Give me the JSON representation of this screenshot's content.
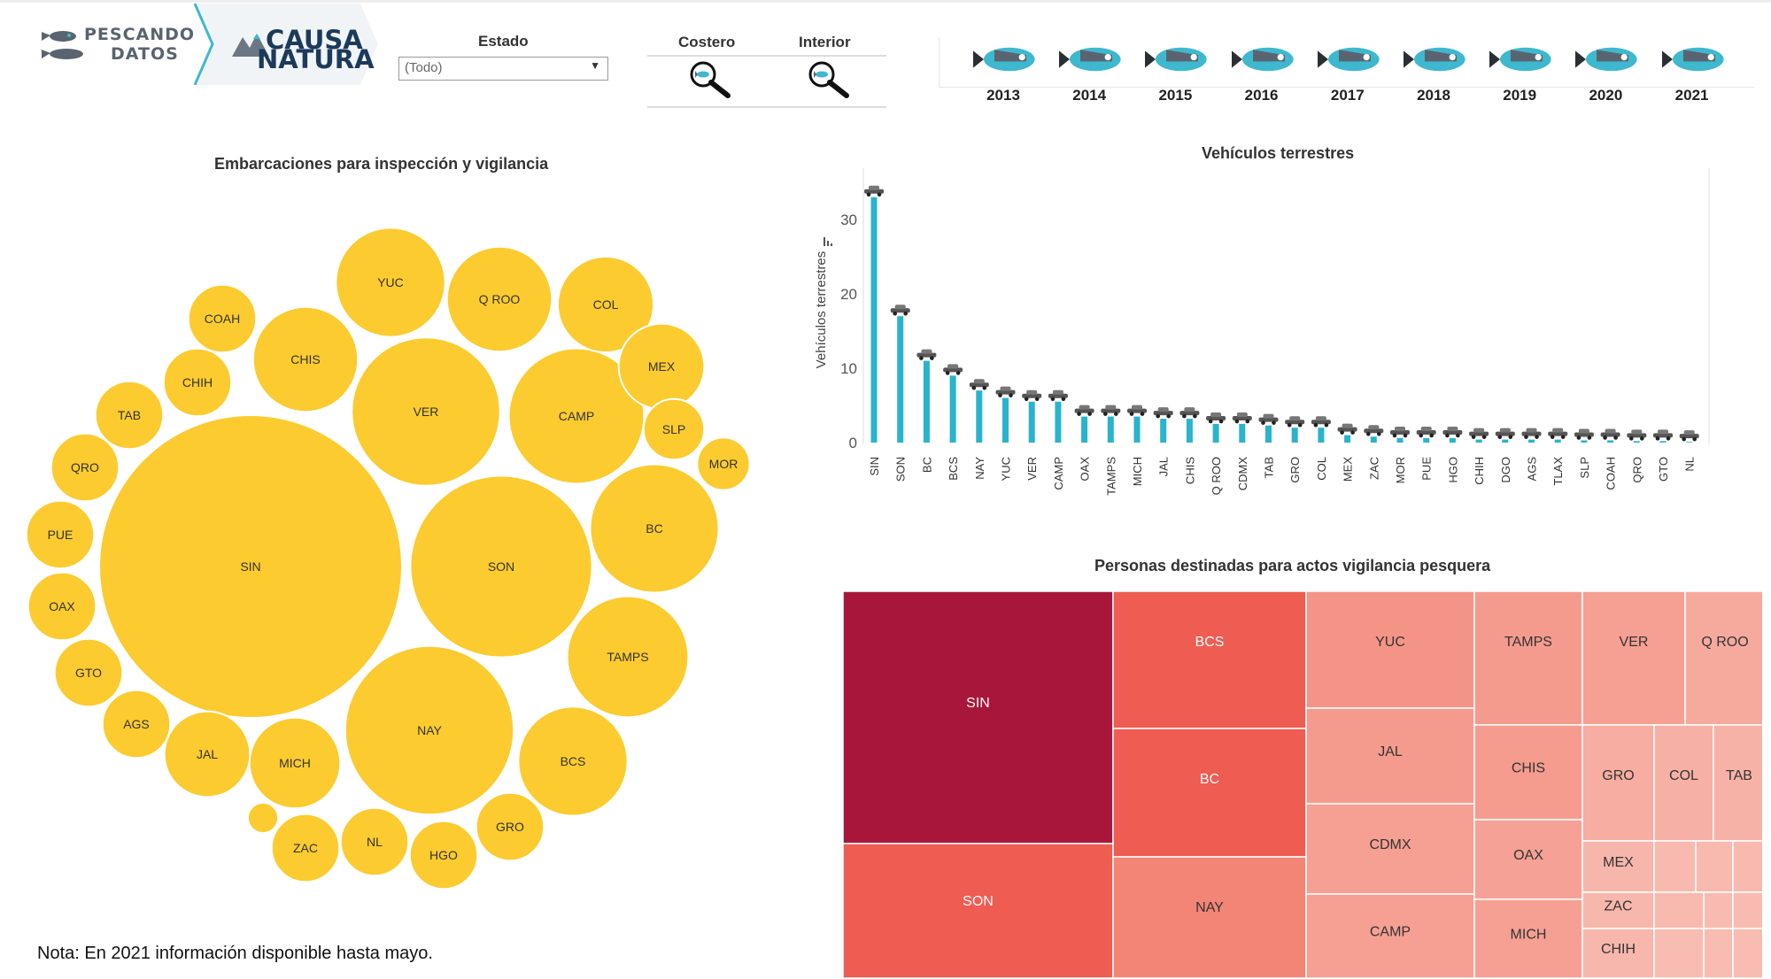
{
  "header": {
    "logo1": {
      "word1": "PESCANDO",
      "word2": "DATOS"
    },
    "logo2": {
      "word1": "CAUSA",
      "word2": "NATURA"
    },
    "estado": {
      "label": "Estado",
      "value": "(Todo)"
    },
    "toggles": [
      {
        "label": "Costero"
      },
      {
        "label": "Interior"
      }
    ],
    "years": [
      "2013",
      "2014",
      "2015",
      "2016",
      "2017",
      "2018",
      "2019",
      "2020",
      "2021"
    ]
  },
  "colors": {
    "bubble": "#FCCB2F",
    "bar": "#28B4CC",
    "fish": "#3EB8CF",
    "treemap_dark": "#A8173B",
    "treemap_mid": "#EE5C52",
    "treemap_light": "#F7AFA2"
  },
  "note": "Nota: En 2021 información disponible hasta mayo.",
  "chart_data": [
    {
      "type": "bubble",
      "title": "Embarcaciones para inspección y vigilancia",
      "labels": [
        "SIN",
        "SON",
        "NAY",
        "VER",
        "CAMP",
        "BC",
        "TAMPS",
        "BCS",
        "YUC",
        "Q ROO",
        "CHIS",
        "COL",
        "MICH",
        "MEX",
        "JAL",
        "COAH",
        "GRO",
        "CHIH",
        "HGO",
        "ZAC",
        "AGS",
        "NL",
        "TAB",
        "QRO",
        "PUE",
        "OAX",
        "GTO",
        "SLP",
        "MOR",
        ""
      ],
      "values": [
        100,
        36,
        31,
        24,
        20,
        18,
        16,
        13,
        13,
        12,
        12,
        10,
        9,
        8,
        8,
        5,
        5,
        5,
        5,
        5,
        5,
        5,
        5,
        5,
        5,
        5,
        5,
        4,
        3,
        1
      ]
    },
    {
      "type": "bar",
      "title": "Vehículos terrestres",
      "ylabel": "Vehículos terrestres",
      "ylim": [
        0,
        35
      ],
      "yticks": [
        0,
        10,
        20,
        30
      ],
      "categories": [
        "SIN",
        "SON",
        "BC",
        "BCS",
        "NAY",
        "YUC",
        "VER",
        "CAMP",
        "OAX",
        "TAMPS",
        "MICH",
        "JAL",
        "CHIS",
        "Q ROO",
        "CDMX",
        "TAB",
        "GRO",
        "COL",
        "MEX",
        "ZAC",
        "MOR",
        "PUE",
        "HGO",
        "CHIH",
        "DGO",
        "AGS",
        "TLAX",
        "SLP",
        "COAH",
        "QRO",
        "GTO",
        "NL"
      ],
      "values": [
        33,
        17,
        11,
        9,
        7,
        6,
        5.5,
        5.5,
        3.5,
        3.5,
        3.5,
        3.2,
        3.2,
        2.5,
        2.5,
        2.3,
        2,
        2,
        1,
        0.8,
        0.6,
        0.6,
        0.6,
        0.4,
        0.4,
        0.4,
        0.4,
        0.3,
        0.3,
        0.2,
        0.2,
        0.1
      ]
    },
    {
      "type": "treemap",
      "title": "Personas destinadas para actos vigilancia pesquera",
      "labels": [
        "SIN",
        "SON",
        "BCS",
        "BC",
        "NAY",
        "YUC",
        "JAL",
        "CDMX",
        "CAMP",
        "TAMPS",
        "CHIS",
        "OAX",
        "MICH",
        "VER",
        "Q ROO",
        "GRO",
        "COL",
        "TAB",
        "MEX",
        "ZAC",
        "CHIH",
        "",
        "",
        "",
        "",
        "",
        "",
        "",
        "",
        ""
      ],
      "values": [
        100,
        55,
        52,
        50,
        45,
        33,
        28,
        24,
        24,
        28,
        27,
        23,
        24,
        24,
        16,
        14,
        11,
        10,
        7,
        6,
        6,
        4,
        4,
        4,
        4,
        3,
        3,
        2,
        2,
        2
      ]
    }
  ]
}
